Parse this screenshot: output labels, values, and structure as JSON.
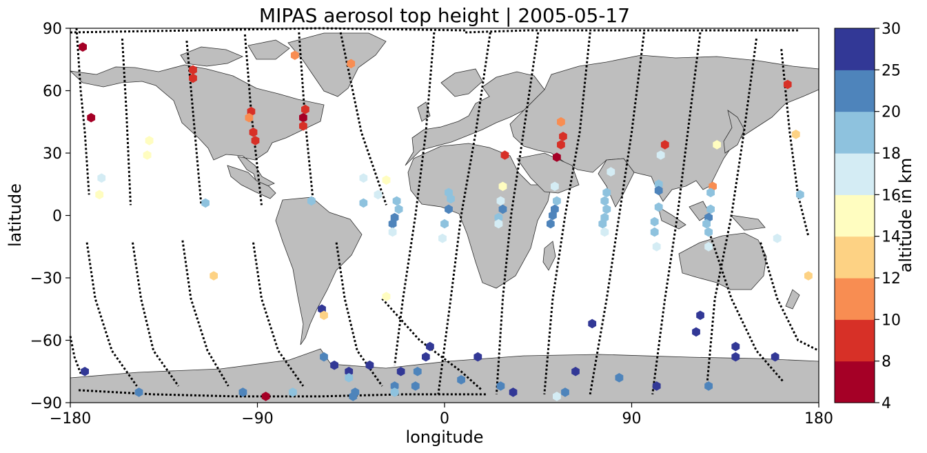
{
  "chart_data": {
    "type": "scatter",
    "title": "MIPAS aerosol top height | 2005-05-17",
    "xlabel": "longitude",
    "ylabel": "latitude",
    "xlim": [
      -180,
      180
    ],
    "ylim": [
      -90,
      90
    ],
    "xticks": [
      -180,
      -90,
      0,
      90,
      180
    ],
    "yticks": [
      -90,
      -60,
      -30,
      0,
      30,
      60,
      90
    ],
    "xtick_labels": [
      "−180",
      "−90",
      "0",
      "90",
      "180"
    ],
    "ytick_labels": [
      "−90",
      "−60",
      "−30",
      "0",
      "30",
      "60",
      "90"
    ],
    "grid": false,
    "background": "world map (gray land, white ocean)",
    "marker": "hexagon",
    "colorbar": {
      "label": "altitude in km",
      "boundaries": [
        4,
        8,
        10,
        12,
        14,
        16,
        18,
        20,
        25,
        30
      ],
      "tick_labels": [
        "4",
        "8",
        "10",
        "12",
        "14",
        "16",
        "18",
        "20",
        "25",
        "30"
      ],
      "colors": [
        "#a50026",
        "#d73027",
        "#f46d43",
        "#fdae61",
        "#fee090",
        "#ffffbf",
        "#e0f3f8",
        "#abd9e9",
        "#74add1",
        "#4575b4",
        "#313695"
      ],
      "bin_colors": [
        "#a50026",
        "#d73027",
        "#f88d52",
        "#fdd284",
        "#fffdc0",
        "#d4ecf4",
        "#8ec2de",
        "#4e84bb",
        "#323896"
      ],
      "placement": "right"
    },
    "tracks": [
      [
        [
          -177,
          90
        ],
        [
          -175,
          60
        ],
        [
          -173,
          40
        ],
        [
          -171,
          10
        ]
      ],
      [
        [
          -155,
          85
        ],
        [
          -153,
          50
        ],
        [
          -151,
          5
        ]
      ],
      [
        [
          -124,
          84
        ],
        [
          -121,
          50
        ],
        [
          -117,
          5
        ]
      ],
      [
        [
          -96,
          87
        ],
        [
          -93,
          50
        ],
        [
          -88,
          5
        ]
      ],
      [
        [
          -70,
          88
        ],
        [
          -67,
          45
        ],
        [
          -63,
          5
        ]
      ],
      [
        [
          -50,
          88
        ],
        [
          -40,
          40
        ],
        [
          -28,
          5
        ]
      ],
      [
        [
          -5,
          88
        ],
        [
          -9,
          40
        ],
        [
          -14,
          0
        ],
        [
          -20,
          -40
        ],
        [
          -24,
          -72
        ]
      ],
      [
        [
          22,
          88
        ],
        [
          15,
          40
        ],
        [
          8,
          0
        ],
        [
          3,
          -40
        ],
        [
          -3,
          -86
        ]
      ],
      [
        [
          45,
          88
        ],
        [
          38,
          40
        ],
        [
          32,
          0
        ],
        [
          28,
          -40
        ],
        [
          25,
          -86
        ]
      ],
      [
        [
          70,
          88
        ],
        [
          65,
          40
        ],
        [
          58,
          0
        ],
        [
          52,
          -40
        ],
        [
          48,
          -86
        ]
      ],
      [
        [
          96,
          88
        ],
        [
          90,
          40
        ],
        [
          84,
          0
        ],
        [
          78,
          -40
        ],
        [
          70,
          -86
        ]
      ],
      [
        [
          123,
          88
        ],
        [
          117,
          40
        ],
        [
          112,
          0
        ],
        [
          106,
          -40
        ],
        [
          100,
          -86
        ]
      ],
      [
        [
          150,
          85
        ],
        [
          144,
          40
        ],
        [
          138,
          0
        ],
        [
          130,
          -40
        ],
        [
          126,
          -84
        ]
      ],
      [
        [
          162,
          80
        ],
        [
          166,
          40
        ],
        [
          170,
          10
        ],
        [
          175,
          -10
        ]
      ],
      [
        [
          -172,
          -13
        ],
        [
          -168,
          -40
        ],
        [
          -160,
          -65
        ],
        [
          -148,
          -82
        ]
      ],
      [
        [
          -150,
          -13
        ],
        [
          -146,
          -40
        ],
        [
          -140,
          -65
        ],
        [
          -128,
          -82
        ]
      ],
      [
        [
          -126,
          -12
        ],
        [
          -122,
          -40
        ],
        [
          -114,
          -65
        ],
        [
          -104,
          -82
        ]
      ],
      [
        [
          -92,
          -13
        ],
        [
          -88,
          -40
        ],
        [
          -80,
          -65
        ],
        [
          -68,
          -82
        ]
      ],
      [
        [
          -52,
          -13
        ],
        [
          -48,
          -40
        ],
        [
          -42,
          -65
        ],
        [
          -30,
          -82
        ]
      ],
      [
        [
          -30,
          -40
        ],
        [
          -12,
          -60
        ],
        [
          8,
          -75
        ],
        [
          18,
          -84
        ]
      ],
      [
        [
          128,
          -10
        ],
        [
          138,
          -40
        ],
        [
          150,
          -65
        ],
        [
          163,
          -80
        ]
      ],
      [
        [
          152,
          -13
        ],
        [
          160,
          -40
        ],
        [
          170,
          -60
        ],
        [
          180,
          -65
        ]
      ],
      [
        [
          -180,
          -58
        ],
        [
          -178,
          -68
        ],
        [
          -175,
          -76
        ]
      ],
      [
        [
          -176,
          -84
        ],
        [
          -140,
          -86
        ],
        [
          -100,
          -87
        ],
        [
          -60,
          -87
        ],
        [
          -20,
          -86
        ],
        [
          20,
          -86
        ]
      ],
      [
        [
          -180,
          88
        ],
        [
          -60,
          90
        ],
        [
          10,
          89
        ]
      ],
      [
        [
          10,
          88
        ],
        [
          40,
          89
        ],
        [
          100,
          89
        ],
        [
          170,
          89
        ]
      ]
    ],
    "points": [
      [
        -174,
        81,
        6
      ],
      [
        -170,
        47,
        6
      ],
      [
        -165,
        18,
        17
      ],
      [
        -166,
        10,
        15
      ],
      [
        -142,
        36,
        15
      ],
      [
        -143,
        29,
        15
      ],
      [
        -115,
        6,
        19
      ],
      [
        -111,
        -29,
        13
      ],
      [
        -121,
        70,
        9
      ],
      [
        -121,
        66,
        9
      ],
      [
        -93,
        50,
        9
      ],
      [
        -94,
        47,
        11
      ],
      [
        -92,
        40,
        9
      ],
      [
        -91,
        36,
        9
      ],
      [
        -72,
        77,
        11
      ],
      [
        -67,
        51,
        9
      ],
      [
        -68,
        47,
        6
      ],
      [
        -68,
        43,
        9
      ],
      [
        -64,
        7,
        19
      ],
      [
        -45,
        73,
        11
      ],
      [
        -39,
        18,
        17
      ],
      [
        -39,
        6,
        19
      ],
      [
        -59,
        -45,
        27
      ],
      [
        -58,
        -48,
        13
      ],
      [
        -28,
        17,
        15
      ],
      [
        -32,
        10,
        17
      ],
      [
        -23,
        7,
        19
      ],
      [
        -22,
        3,
        19
      ],
      [
        -24,
        -1,
        22
      ],
      [
        -25,
        -4,
        22
      ],
      [
        -25,
        -8,
        17
      ],
      [
        -28,
        -39,
        15
      ],
      [
        2,
        11,
        19
      ],
      [
        3,
        8,
        19
      ],
      [
        2,
        3,
        22
      ],
      [
        0,
        -4,
        19
      ],
      [
        -1,
        -11,
        17
      ],
      [
        29,
        29,
        9
      ],
      [
        28,
        14,
        15
      ],
      [
        27,
        7,
        17
      ],
      [
        28,
        3,
        22
      ],
      [
        26,
        -1,
        19
      ],
      [
        26,
        -4,
        17
      ],
      [
        56,
        45,
        11
      ],
      [
        57,
        38,
        9
      ],
      [
        56,
        34,
        9
      ],
      [
        54,
        28,
        6
      ],
      [
        53,
        14,
        17
      ],
      [
        54,
        7,
        19
      ],
      [
        53,
        3,
        22
      ],
      [
        52,
        0,
        22
      ],
      [
        51,
        -4,
        22
      ],
      [
        80,
        21,
        17
      ],
      [
        78,
        11,
        19
      ],
      [
        77,
        7,
        19
      ],
      [
        78,
        3,
        19
      ],
      [
        77,
        -1,
        19
      ],
      [
        76,
        -4,
        19
      ],
      [
        77,
        -8,
        17
      ],
      [
        106,
        34,
        9
      ],
      [
        104,
        29,
        17
      ],
      [
        103,
        15,
        19
      ],
      [
        103,
        12,
        22
      ],
      [
        103,
        4,
        19
      ],
      [
        101,
        -3,
        19
      ],
      [
        101,
        -8,
        19
      ],
      [
        102,
        -15,
        17
      ],
      [
        131,
        34,
        15
      ],
      [
        129,
        14,
        11
      ],
      [
        128,
        11,
        19
      ],
      [
        128,
        3,
        19
      ],
      [
        127,
        -1,
        22
      ],
      [
        126,
        -4,
        19
      ],
      [
        127,
        -8,
        19
      ],
      [
        127,
        -15,
        17
      ],
      [
        160,
        -11,
        17
      ],
      [
        165,
        63,
        9
      ],
      [
        169,
        39,
        13
      ],
      [
        171,
        10,
        19
      ],
      [
        175,
        -29,
        13
      ],
      [
        -173,
        -75,
        27
      ],
      [
        -147,
        -85,
        22
      ],
      [
        -97,
        -85,
        22
      ],
      [
        -86,
        -87,
        6
      ],
      [
        -73,
        -85,
        19
      ],
      [
        -58,
        -68,
        22
      ],
      [
        -53,
        -72,
        27
      ],
      [
        -46,
        -75,
        27
      ],
      [
        -46,
        -78,
        19
      ],
      [
        -43,
        -85,
        22
      ],
      [
        -44,
        -87,
        22
      ],
      [
        -36,
        -72,
        27
      ],
      [
        -24,
        -82,
        22
      ],
      [
        -24,
        -85,
        19
      ],
      [
        -21,
        -75,
        27
      ],
      [
        -13,
        -75,
        22
      ],
      [
        -14,
        -82,
        22
      ],
      [
        -9,
        -68,
        27
      ],
      [
        -7,
        -63,
        27
      ],
      [
        8,
        -79,
        22
      ],
      [
        16,
        -68,
        27
      ],
      [
        27,
        -82,
        22
      ],
      [
        33,
        -85,
        27
      ],
      [
        54,
        -87,
        17
      ],
      [
        58,
        -85,
        22
      ],
      [
        63,
        -75,
        27
      ],
      [
        71,
        -52,
        27
      ],
      [
        84,
        -78,
        22
      ],
      [
        102,
        -82,
        27
      ],
      [
        121,
        -56,
        27
      ],
      [
        123,
        -48,
        27
      ],
      [
        127,
        -82,
        22
      ],
      [
        140,
        -68,
        27
      ],
      [
        140,
        -63,
        27
      ],
      [
        159,
        -68,
        27
      ]
    ]
  }
}
